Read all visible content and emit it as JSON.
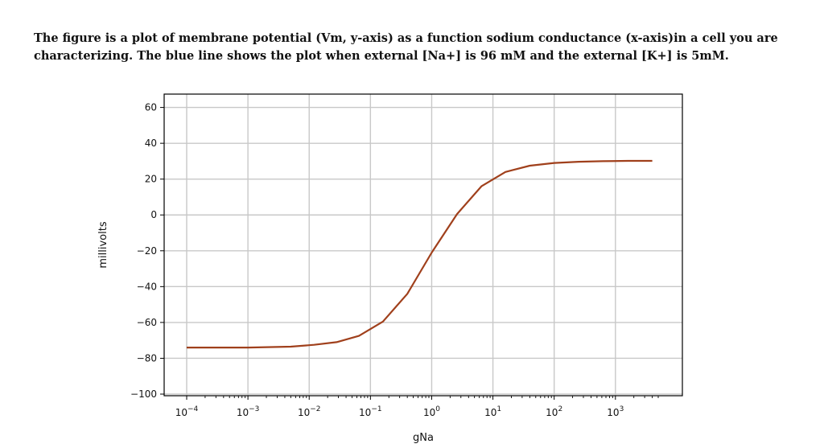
{
  "question": {
    "line1": "The figure is a plot of membrane potential (Vm, y-axis) as a function sodium conductance (x-axis)in a cell you are",
    "line2": "characterizing. The blue line shows the plot when external [Na+] is 96 mM and the external [K+] is 5mM."
  },
  "chart_data": {
    "type": "line",
    "xlabel": "gNa",
    "ylabel": "millivolts",
    "xscale": "log",
    "xlim": [
      0.0001,
      5000
    ],
    "ylim": [
      -100,
      67
    ],
    "grid": true,
    "x_ticks": [
      {
        "value": 0.0001,
        "base": "10",
        "exp": "−4"
      },
      {
        "value": 0.001,
        "base": "10",
        "exp": "−3"
      },
      {
        "value": 0.01,
        "base": "10",
        "exp": "−2"
      },
      {
        "value": 0.1,
        "base": "10",
        "exp": "−1"
      },
      {
        "value": 1,
        "base": "10",
        "exp": "0"
      },
      {
        "value": 10,
        "base": "10",
        "exp": "1"
      },
      {
        "value": 100,
        "base": "10",
        "exp": "2"
      },
      {
        "value": 1000,
        "base": "10",
        "exp": "3"
      }
    ],
    "y_ticks": [
      {
        "value": 60,
        "label": "60"
      },
      {
        "value": 40,
        "label": "40"
      },
      {
        "value": 20,
        "label": "20"
      },
      {
        "value": 0,
        "label": "0"
      },
      {
        "value": -20,
        "label": "−20"
      },
      {
        "value": -40,
        "label": "−40"
      },
      {
        "value": -60,
        "label": "−60"
      },
      {
        "value": -80,
        "label": "−80"
      },
      {
        "value": -100,
        "label": "−100"
      }
    ],
    "series": [
      {
        "color": "#a0401c",
        "x": [
          0.0001,
          0.001,
          0.005,
          0.012,
          0.028,
          0.065,
          0.16,
          0.4,
          1,
          2.6,
          6.5,
          16,
          40,
          100,
          250,
          630,
          1600,
          4000
        ],
        "y": [
          -74,
          -74,
          -73.5,
          -72.5,
          -71,
          -67.5,
          -59.5,
          -44,
          -21,
          0.5,
          16,
          24,
          27.5,
          29,
          29.7,
          30,
          30.2,
          30.2
        ]
      }
    ]
  }
}
